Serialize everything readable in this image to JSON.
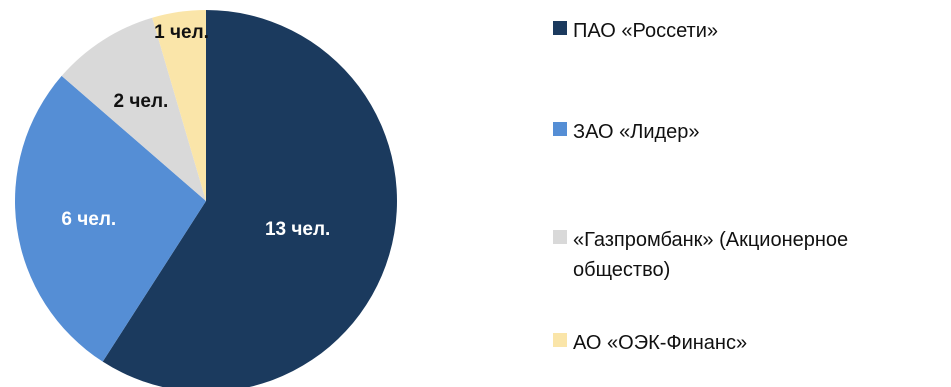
{
  "chart_data": {
    "type": "pie",
    "start_angle_deg": 0,
    "direction": "clockwise",
    "slices": [
      {
        "name": "ПАО «Россети»",
        "value": 13,
        "label": "13 чел.",
        "color": "#1b3a5e"
      },
      {
        "name": "ЗАО «Лидер»",
        "value": 6,
        "label": "6 чел.",
        "color": "#558ed5"
      },
      {
        "name": "«Газпромбанк» (Акционерное общество)",
        "value": 2,
        "label": "2 чел.",
        "color": "#d9d9d9"
      },
      {
        "name": "АО «ОЭК-Финанс»",
        "value": 1,
        "label": "1 чел.",
        "color": "#fae5a9"
      }
    ],
    "legend_position": "right"
  }
}
